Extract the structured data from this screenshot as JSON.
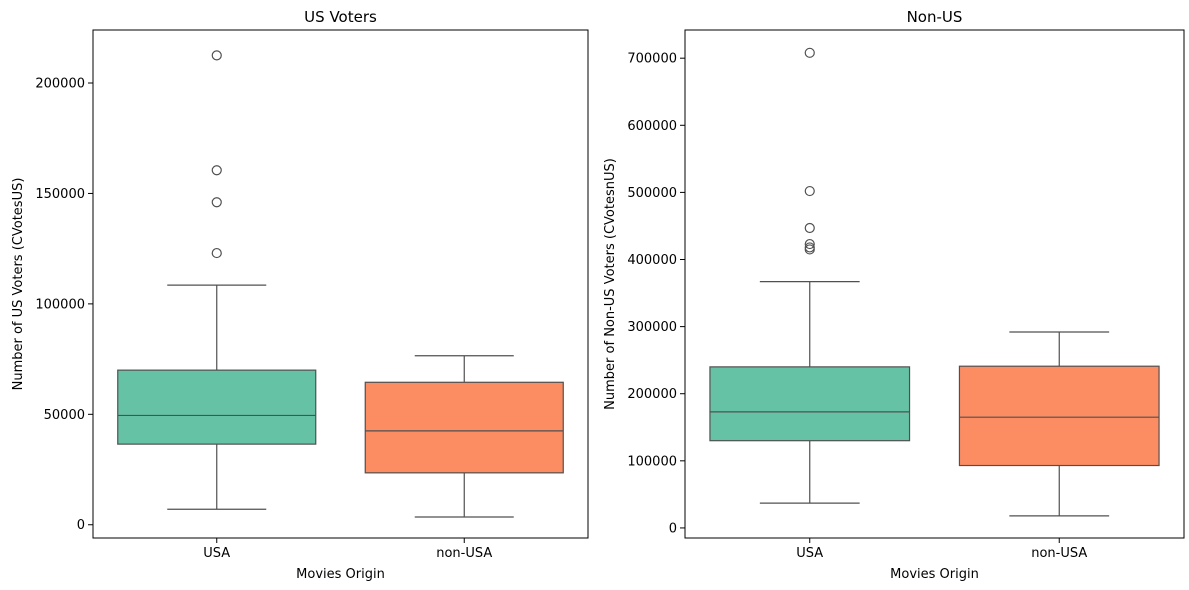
{
  "chart_data": [
    {
      "type": "box",
      "title": "US Voters",
      "xlabel": "Movies Origin",
      "ylabel": "Number of US Voters (CVotesUS)",
      "ylim": [
        -6000,
        224000
      ],
      "yticks": [
        0,
        50000,
        100000,
        150000,
        200000
      ],
      "ytick_labels": [
        "0",
        "50000",
        "100000",
        "150000",
        "200000"
      ],
      "categories": [
        "USA",
        "non-USA"
      ],
      "colors": [
        "#66c2a5",
        "#fc8d62"
      ],
      "boxes": [
        {
          "category": "USA",
          "whisker_low": 7000,
          "q1": 36500,
          "median": 49500,
          "q3": 70000,
          "whisker_high": 108500,
          "outliers": [
            123000,
            146000,
            160500,
            212500
          ]
        },
        {
          "category": "non-USA",
          "whisker_low": 3500,
          "q1": 23500,
          "median": 42500,
          "q3": 64500,
          "whisker_high": 76500,
          "outliers": []
        }
      ]
    },
    {
      "type": "box",
      "title": "Non-US",
      "xlabel": "Movies Origin",
      "ylabel": "Number of Non-US Voters (CVotesnUS)",
      "ylim": [
        -15000,
        742000
      ],
      "yticks": [
        0,
        100000,
        200000,
        300000,
        400000,
        500000,
        600000,
        700000
      ],
      "ytick_labels": [
        "0",
        "100000",
        "200000",
        "300000",
        "400000",
        "500000",
        "600000",
        "700000"
      ],
      "categories": [
        "USA",
        "non-USA"
      ],
      "colors": [
        "#66c2a5",
        "#fc8d62"
      ],
      "boxes": [
        {
          "category": "USA",
          "whisker_low": 37000,
          "q1": 130000,
          "median": 173000,
          "q3": 240000,
          "whisker_high": 367000,
          "outliers": [
            415000,
            418000,
            423000,
            447000,
            502000,
            708000
          ]
        },
        {
          "category": "non-USA",
          "whisker_low": 18000,
          "q1": 93000,
          "median": 165000,
          "q3": 241000,
          "whisker_high": 292000,
          "outliers": []
        }
      ]
    }
  ]
}
